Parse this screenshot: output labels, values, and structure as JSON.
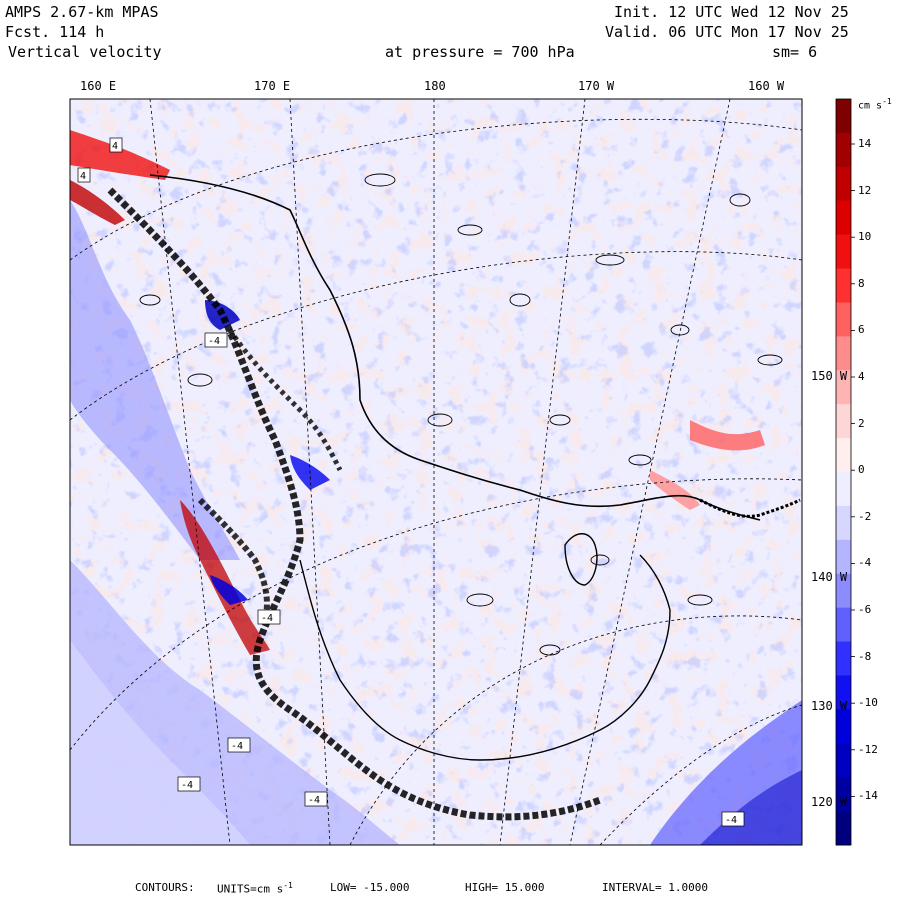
{
  "header": {
    "model": "AMPS 2.67-km MPAS",
    "forecast": "Fcst.  114 h",
    "field": "Vertical velocity",
    "init": "Init. 12 UTC Wed 12 Nov 25",
    "valid": "Valid. 06 UTC Mon 17 Nov 25",
    "pressure": "at pressure =  700 hPa",
    "smoothing": "sm= 6"
  },
  "longitude_labels": [
    "160 E",
    "170 E",
    "180",
    "170 W",
    "160 W"
  ],
  "right_labels": [
    "150 W",
    "140 W",
    "130 W",
    "120 W"
  ],
  "colorbar": {
    "units_label": "cm s",
    "units_exp": "-1",
    "ticks": [
      "14",
      "12",
      "10",
      "8",
      "6",
      "4",
      "2",
      "0",
      "-2",
      "-4",
      "-6",
      "-8",
      "-10",
      "-12",
      "-14"
    ],
    "colors": [
      "#7f0000",
      "#a00000",
      "#c00000",
      "#dc0000",
      "#f01010",
      "#ff3030",
      "#ff6060",
      "#ff8c8c",
      "#ffb4b4",
      "#ffd6d6",
      "#ffeeee",
      "#eeeeff",
      "#d6d6ff",
      "#b4b4ff",
      "#8c8cff",
      "#6060ff",
      "#3030ff",
      "#1010f0",
      "#0000dc",
      "#0000c0",
      "#0000a0",
      "#00007f"
    ]
  },
  "map": {
    "box_value": "-4",
    "boxes_red": [
      "4",
      "4"
    ]
  },
  "footer": {
    "contours": "CONTOURS:",
    "units": "UNITS=cm s",
    "units_exp": "-1",
    "low": "LOW=  -15.000",
    "high": "HIGH=  15.000",
    "interval": "INTERVAL=   1.0000"
  }
}
